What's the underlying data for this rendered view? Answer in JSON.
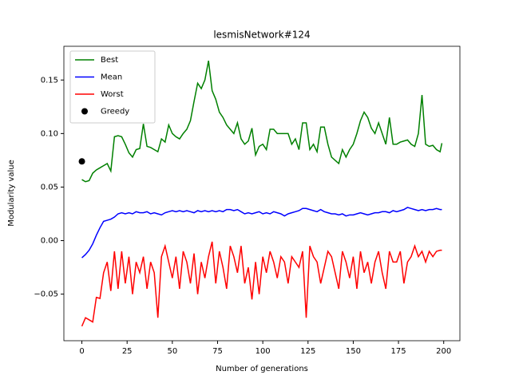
{
  "chart_data": {
    "type": "line",
    "title": "lesmisNetwork#124",
    "xlabel": "Number of generations",
    "ylabel": "Modularity value",
    "x": [
      0,
      2,
      4,
      6,
      8,
      10,
      12,
      14,
      16,
      18,
      20,
      22,
      24,
      26,
      28,
      30,
      32,
      34,
      36,
      38,
      40,
      42,
      44,
      46,
      48,
      50,
      52,
      54,
      56,
      58,
      60,
      62,
      64,
      66,
      68,
      70,
      72,
      74,
      76,
      78,
      80,
      82,
      84,
      86,
      88,
      90,
      92,
      94,
      96,
      98,
      100,
      102,
      104,
      106,
      108,
      110,
      112,
      114,
      116,
      118,
      120,
      122,
      124,
      126,
      128,
      130,
      132,
      134,
      136,
      138,
      140,
      142,
      144,
      146,
      148,
      150,
      152,
      154,
      156,
      158,
      160,
      162,
      164,
      166,
      168,
      170,
      172,
      174,
      176,
      178,
      180,
      182,
      184,
      186,
      188,
      190,
      192,
      194,
      196,
      198,
      199
    ],
    "series": [
      {
        "name": "Best",
        "color": "#008000",
        "values": [
          0.057,
          0.055,
          0.056,
          0.063,
          0.066,
          0.068,
          0.07,
          0.072,
          0.065,
          0.097,
          0.098,
          0.097,
          0.09,
          0.082,
          0.078,
          0.085,
          0.086,
          0.109,
          0.088,
          0.087,
          0.085,
          0.083,
          0.095,
          0.092,
          0.108,
          0.1,
          0.097,
          0.095,
          0.1,
          0.104,
          0.112,
          0.13,
          0.147,
          0.142,
          0.15,
          0.168,
          0.14,
          0.132,
          0.12,
          0.115,
          0.108,
          0.104,
          0.1,
          0.11,
          0.095,
          0.09,
          0.093,
          0.105,
          0.08,
          0.088,
          0.09,
          0.085,
          0.104,
          0.104,
          0.1,
          0.1,
          0.1,
          0.1,
          0.09,
          0.095,
          0.085,
          0.11,
          0.11,
          0.085,
          0.09,
          0.083,
          0.106,
          0.106,
          0.09,
          0.078,
          0.075,
          0.072,
          0.085,
          0.078,
          0.085,
          0.09,
          0.1,
          0.112,
          0.12,
          0.115,
          0.105,
          0.1,
          0.11,
          0.1,
          0.09,
          0.115,
          0.09,
          0.09,
          0.092,
          0.093,
          0.094,
          0.09,
          0.088,
          0.1,
          0.136,
          0.09,
          0.088,
          0.089,
          0.085,
          0.083,
          0.091
        ]
      },
      {
        "name": "Mean",
        "color": "#0000ff",
        "values": [
          -0.016,
          -0.013,
          -0.009,
          -0.003,
          0.005,
          0.012,
          0.018,
          0.019,
          0.02,
          0.022,
          0.025,
          0.026,
          0.025,
          0.026,
          0.025,
          0.027,
          0.026,
          0.026,
          0.027,
          0.025,
          0.026,
          0.025,
          0.024,
          0.026,
          0.027,
          0.028,
          0.027,
          0.028,
          0.027,
          0.028,
          0.027,
          0.026,
          0.028,
          0.027,
          0.028,
          0.027,
          0.028,
          0.027,
          0.028,
          0.027,
          0.029,
          0.029,
          0.028,
          0.029,
          0.027,
          0.025,
          0.026,
          0.025,
          0.026,
          0.027,
          0.025,
          0.026,
          0.025,
          0.027,
          0.026,
          0.025,
          0.023,
          0.025,
          0.026,
          0.027,
          0.028,
          0.03,
          0.03,
          0.029,
          0.028,
          0.027,
          0.029,
          0.027,
          0.026,
          0.025,
          0.025,
          0.024,
          0.025,
          0.023,
          0.024,
          0.024,
          0.025,
          0.026,
          0.025,
          0.024,
          0.025,
          0.026,
          0.026,
          0.027,
          0.027,
          0.026,
          0.028,
          0.027,
          0.028,
          0.029,
          0.031,
          0.03,
          0.029,
          0.028,
          0.029,
          0.028,
          0.029,
          0.029,
          0.03,
          0.029,
          0.029
        ]
      },
      {
        "name": "Worst",
        "color": "#ff0000",
        "values": [
          -0.08,
          -0.072,
          -0.074,
          -0.076,
          -0.053,
          -0.054,
          -0.03,
          -0.02,
          -0.047,
          -0.01,
          -0.045,
          -0.01,
          -0.04,
          -0.015,
          -0.05,
          -0.02,
          -0.03,
          -0.015,
          -0.045,
          -0.02,
          -0.03,
          -0.072,
          -0.015,
          -0.005,
          -0.02,
          -0.035,
          -0.015,
          -0.045,
          -0.01,
          -0.02,
          -0.04,
          -0.012,
          -0.05,
          -0.02,
          -0.035,
          -0.015,
          -0.001,
          -0.04,
          -0.01,
          -0.025,
          -0.045,
          -0.005,
          -0.015,
          -0.03,
          -0.005,
          -0.04,
          -0.025,
          -0.055,
          -0.02,
          -0.05,
          -0.015,
          -0.03,
          -0.01,
          -0.02,
          -0.035,
          -0.015,
          -0.02,
          -0.04,
          -0.015,
          -0.02,
          -0.025,
          -0.01,
          -0.072,
          -0.005,
          -0.015,
          -0.02,
          -0.04,
          -0.025,
          -0.01,
          -0.015,
          -0.03,
          -0.045,
          -0.01,
          -0.02,
          -0.035,
          -0.015,
          -0.045,
          -0.01,
          -0.03,
          -0.02,
          -0.04,
          -0.02,
          -0.01,
          -0.03,
          -0.045,
          -0.01,
          -0.02,
          -0.02,
          -0.01,
          -0.04,
          -0.02,
          -0.015,
          -0.005,
          -0.015,
          -0.01,
          -0.02,
          -0.01,
          -0.015,
          -0.01,
          -0.009,
          -0.009
        ]
      },
      {
        "name": "Greedy",
        "color": "#000000",
        "style": "marker",
        "x": [
          0
        ],
        "values": [
          0.074
        ]
      }
    ],
    "xlim": [
      -9.95,
      208.95
    ],
    "xticks": [
      0,
      25,
      50,
      75,
      100,
      125,
      150,
      175,
      200
    ],
    "ylim": [
      -0.0935,
      0.1815
    ],
    "yticks": [
      {
        "value": -0.05,
        "label": "−0.05"
      },
      {
        "value": 0,
        "label": "0.00"
      },
      0.05,
      {
        "value": 0.1,
        "label": "0.10"
      },
      0.15
    ],
    "legend": "upper left"
  }
}
